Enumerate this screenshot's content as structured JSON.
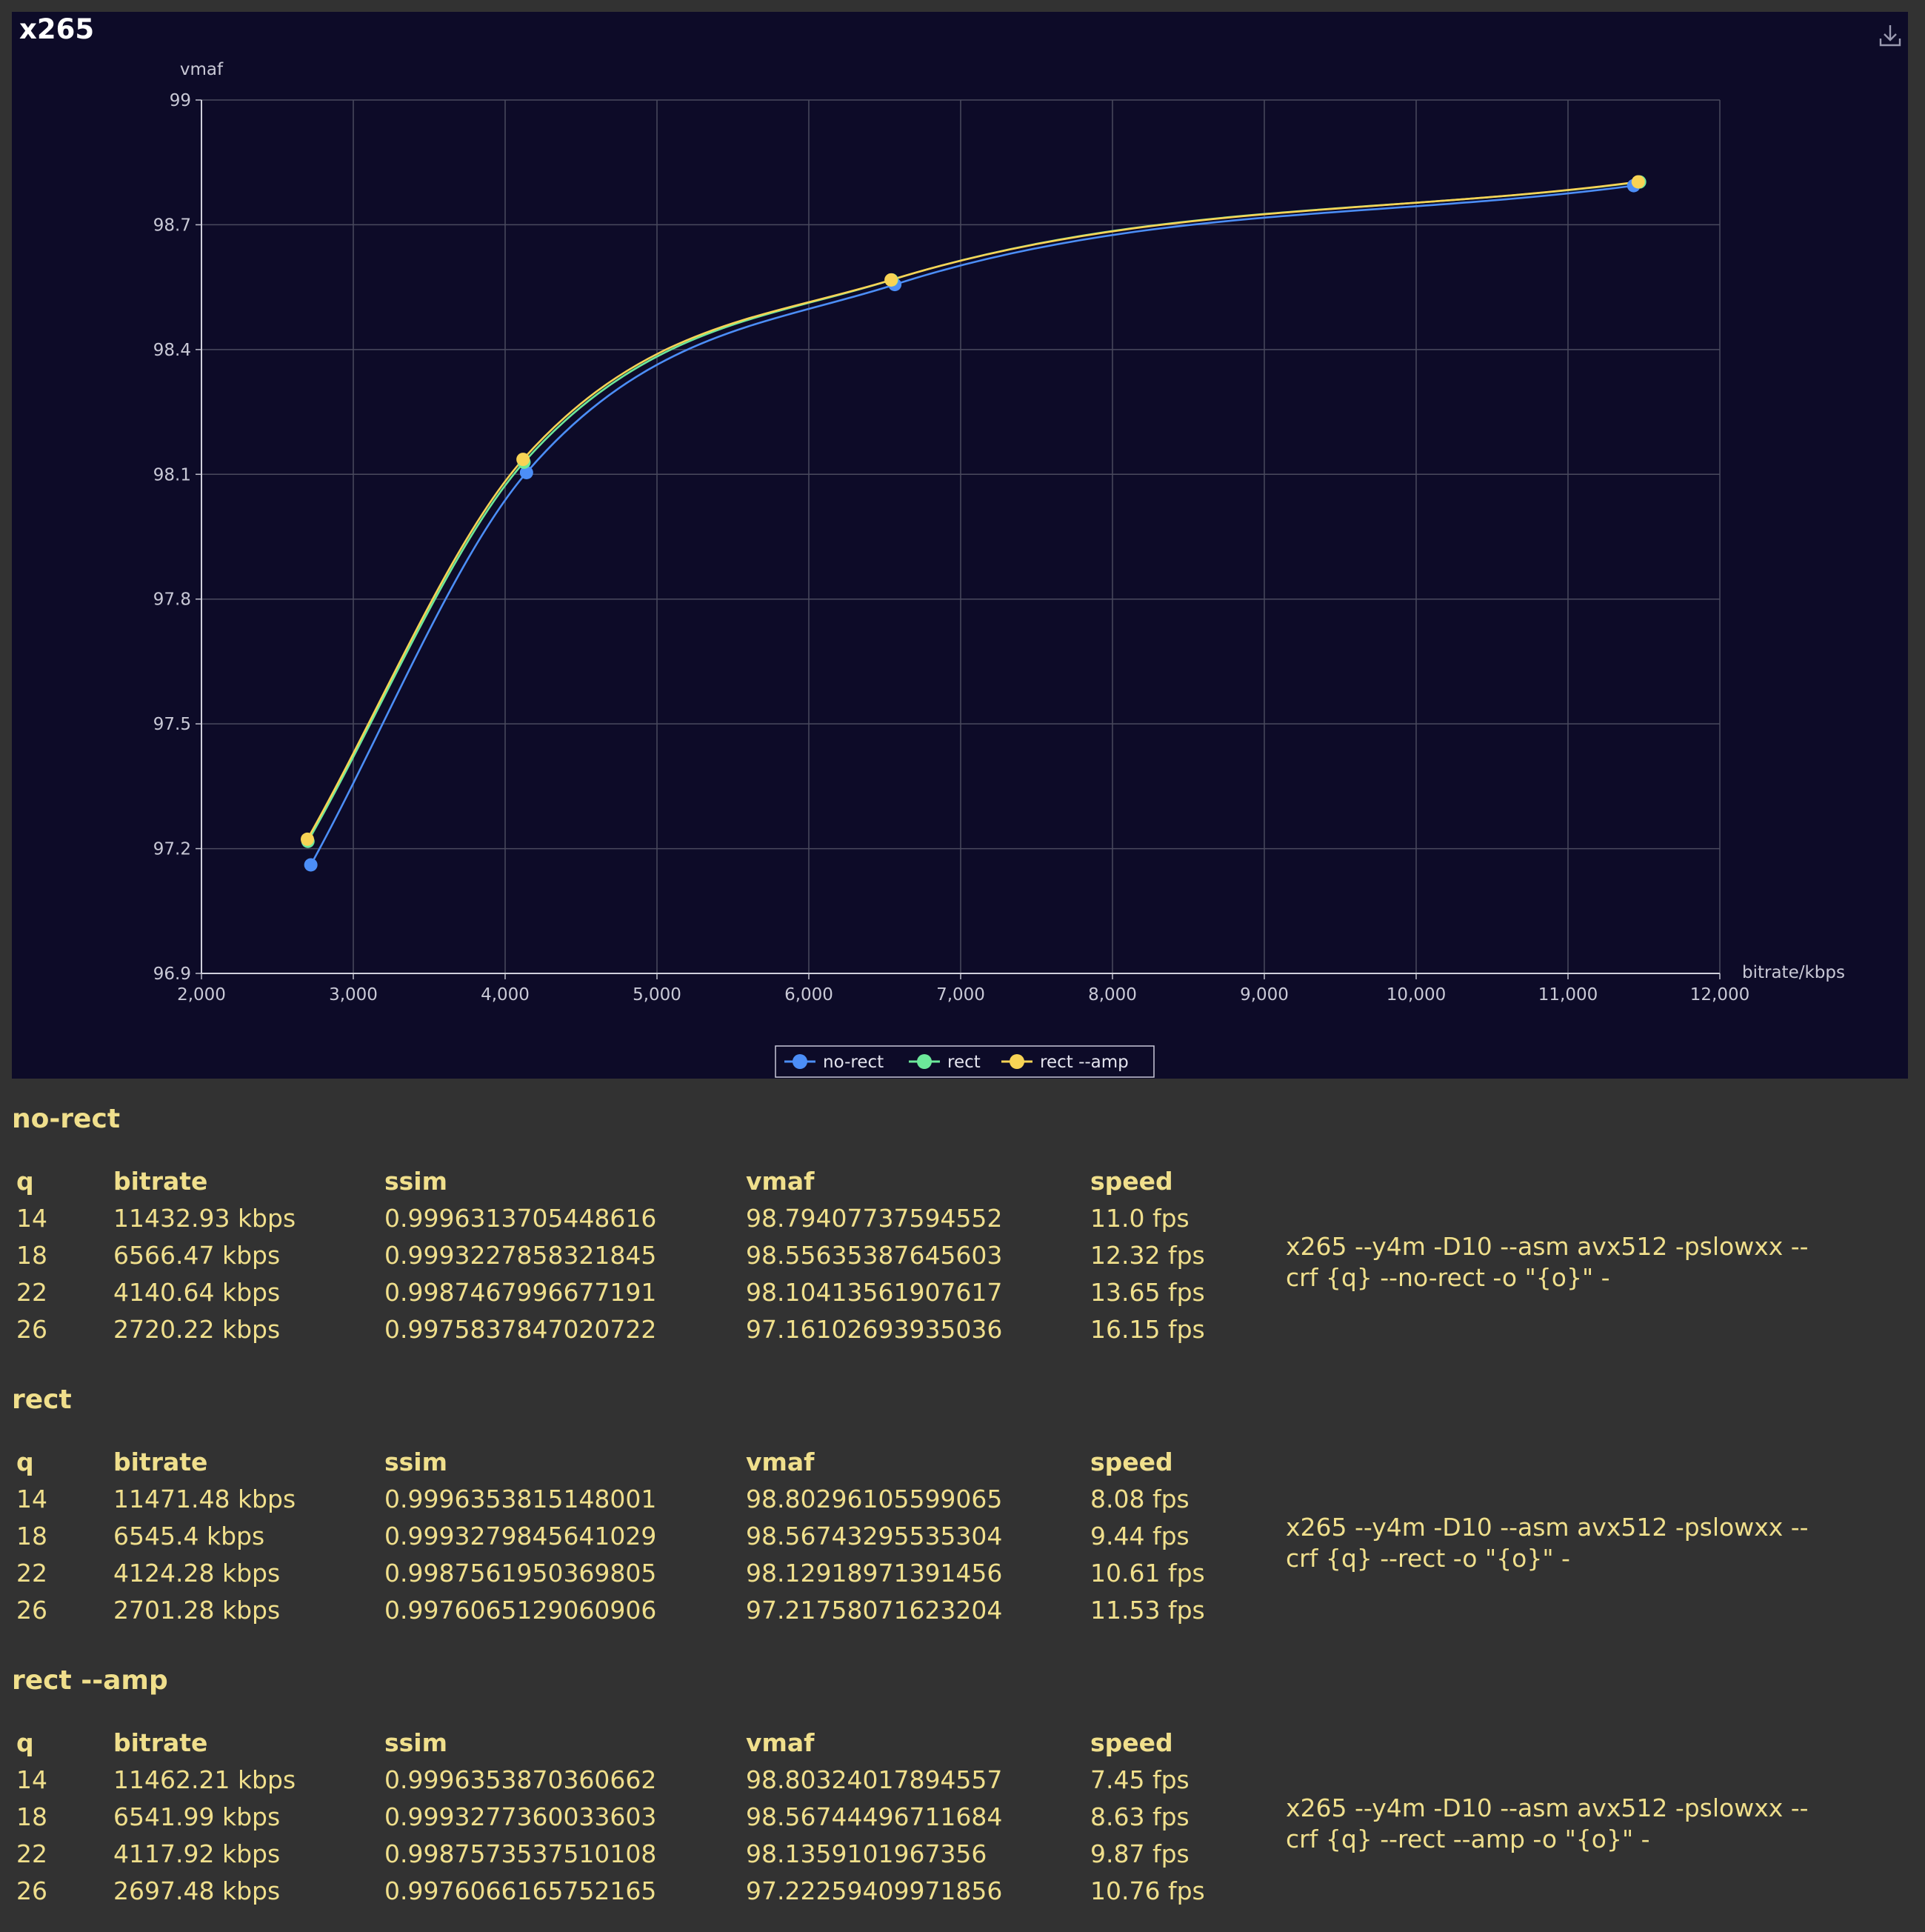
{
  "chart_title": "x265",
  "chart_data": {
    "type": "line",
    "xlabel": "bitrate/kbps",
    "ylabel": "vmaf",
    "xlim": [
      2000,
      12000
    ],
    "ylim": [
      96.9,
      99
    ],
    "xticks": [
      "2,000",
      "3,000",
      "4,000",
      "5,000",
      "6,000",
      "7,000",
      "8,000",
      "9,000",
      "10,000",
      "11,000",
      "12,000"
    ],
    "yticks": [
      "96.9",
      "97.2",
      "97.5",
      "97.8",
      "98.1",
      "98.4",
      "98.7",
      "99"
    ],
    "legend_position": "bottom-center",
    "grid": true,
    "series": [
      {
        "name": "no-rect",
        "color": "#4c8ef7",
        "points": [
          [
            2720.22,
            97.16102693935036
          ],
          [
            4140.64,
            98.10413561907617
          ],
          [
            6566.47,
            98.55635387645603
          ],
          [
            11432.93,
            98.79407737594552
          ]
        ]
      },
      {
        "name": "rect",
        "color": "#6ce89a",
        "points": [
          [
            2701.28,
            97.21758071623204
          ],
          [
            4124.28,
            98.12918971391456
          ],
          [
            6545.4,
            98.56743295535304
          ],
          [
            11471.48,
            98.80296105599065
          ]
        ]
      },
      {
        "name": "rect --amp",
        "color": "#f8d355",
        "points": [
          [
            2697.48,
            97.22259409971856
          ],
          [
            4117.92,
            98.1359101967356
          ],
          [
            6541.99,
            98.56744496711684
          ],
          [
            11462.21,
            98.80324017894557
          ]
        ]
      }
    ]
  },
  "table_headers": {
    "q": "q",
    "bitrate": "bitrate",
    "ssim": "ssim",
    "vmaf": "vmaf",
    "speed": "speed"
  },
  "sections": [
    {
      "name": "no-rect",
      "rows": [
        {
          "q": "14",
          "bitrate": "11432.93  kbps",
          "ssim": "0.9996313705448616",
          "vmaf": "98.79407737594552",
          "speed": "11.0  fps"
        },
        {
          "q": "18",
          "bitrate": "6566.47  kbps",
          "ssim": "0.9993227858321845",
          "vmaf": "98.55635387645603",
          "speed": "12.32  fps"
        },
        {
          "q": "22",
          "bitrate": "4140.64  kbps",
          "ssim": "0.9987467996677191",
          "vmaf": "98.10413561907617",
          "speed": "13.65  fps"
        },
        {
          "q": "26",
          "bitrate": "2720.22  kbps",
          "ssim": "0.9975837847020722",
          "vmaf": "97.16102693935036",
          "speed": "16.15  fps"
        }
      ],
      "command": "x265 --y4m -D10 --asm avx512 -pslowxx --crf {q} --no-rect -o \"{o}\" -"
    },
    {
      "name": "rect",
      "rows": [
        {
          "q": "14",
          "bitrate": "11471.48  kbps",
          "ssim": "0.9996353815148001",
          "vmaf": "98.80296105599065",
          "speed": "8.08  fps"
        },
        {
          "q": "18",
          "bitrate": "6545.4  kbps",
          "ssim": "0.9993279845641029",
          "vmaf": "98.56743295535304",
          "speed": "9.44  fps"
        },
        {
          "q": "22",
          "bitrate": "4124.28  kbps",
          "ssim": "0.9987561950369805",
          "vmaf": "98.12918971391456",
          "speed": "10.61  fps"
        },
        {
          "q": "26",
          "bitrate": "2701.28  kbps",
          "ssim": "0.9976065129060906",
          "vmaf": "97.21758071623204",
          "speed": "11.53  fps"
        }
      ],
      "command": "x265 --y4m -D10 --asm avx512 -pslowxx --crf {q} --rect -o \"{o}\" -"
    },
    {
      "name": "rect --amp",
      "rows": [
        {
          "q": "14",
          "bitrate": "11462.21  kbps",
          "ssim": "0.9996353870360662",
          "vmaf": "98.80324017894557",
          "speed": "7.45  fps"
        },
        {
          "q": "18",
          "bitrate": "6541.99  kbps",
          "ssim": "0.9993277360033603",
          "vmaf": "98.56744496711684",
          "speed": "8.63  fps"
        },
        {
          "q": "22",
          "bitrate": "4117.92  kbps",
          "ssim": "0.9987573537510108",
          "vmaf": "98.1359101967356",
          "speed": "9.87  fps"
        },
        {
          "q": "26",
          "bitrate": "2697.48  kbps",
          "ssim": "0.9976066165752165",
          "vmaf": "97.22259409971856",
          "speed": "10.76  fps"
        }
      ],
      "command": "x265 --y4m -D10 --asm avx512 -pslowxx --crf {q} --rect --amp -o \"{o}\" -"
    }
  ]
}
